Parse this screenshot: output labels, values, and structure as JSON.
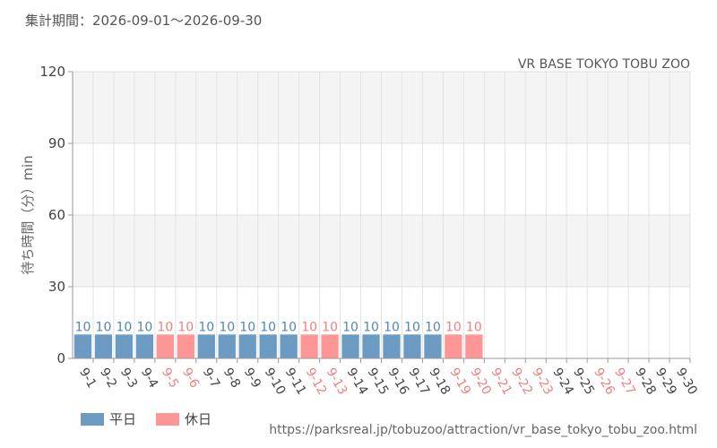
{
  "header": {
    "period_label": "集計期間：2026-09-01〜2026-09-30"
  },
  "footer": {
    "source_url": "https://parksreal.jp/tobuzoo/attraction/vr_base_tokyo_tobu_zoo.html"
  },
  "colors": {
    "weekday": "#6b9bc3",
    "holiday": "#ff9696",
    "weekday_text": "#4f86b8",
    "holiday_text": "#f08080"
  },
  "chart_data": {
    "type": "bar",
    "title": "VR BASE TOKYO TOBU ZOO",
    "ylabel": "待ち時間（分）min",
    "xlabel": "",
    "ylim": [
      0,
      120
    ],
    "yticks": [
      0,
      30,
      60,
      90,
      120
    ],
    "grid": true,
    "legend_position": "bottom-left",
    "categories": [
      "9-1",
      "9-2",
      "9-3",
      "9-4",
      "9-5",
      "9-6",
      "9-7",
      "9-8",
      "9-9",
      "9-10",
      "9-11",
      "9-12",
      "9-13",
      "9-14",
      "9-15",
      "9-16",
      "9-17",
      "9-18",
      "9-19",
      "9-20",
      "9-21",
      "9-22",
      "9-23",
      "9-24",
      "9-25",
      "9-26",
      "9-27",
      "9-28",
      "9-29",
      "9-30"
    ],
    "day_type": [
      "weekday",
      "weekday",
      "weekday",
      "weekday",
      "holiday",
      "holiday",
      "weekday",
      "weekday",
      "weekday",
      "weekday",
      "weekday",
      "holiday",
      "holiday",
      "weekday",
      "weekday",
      "weekday",
      "weekday",
      "weekday",
      "holiday",
      "holiday",
      "holiday",
      "holiday",
      "holiday",
      "weekday",
      "weekday",
      "holiday",
      "holiday",
      "weekday",
      "weekday",
      "weekday"
    ],
    "values": [
      10,
      10,
      10,
      10,
      10,
      10,
      10,
      10,
      10,
      10,
      10,
      10,
      10,
      10,
      10,
      10,
      10,
      10,
      10,
      10,
      null,
      null,
      null,
      null,
      null,
      null,
      null,
      null,
      null,
      null
    ],
    "series": [
      {
        "name": "平日"
      },
      {
        "name": "休日"
      }
    ]
  }
}
